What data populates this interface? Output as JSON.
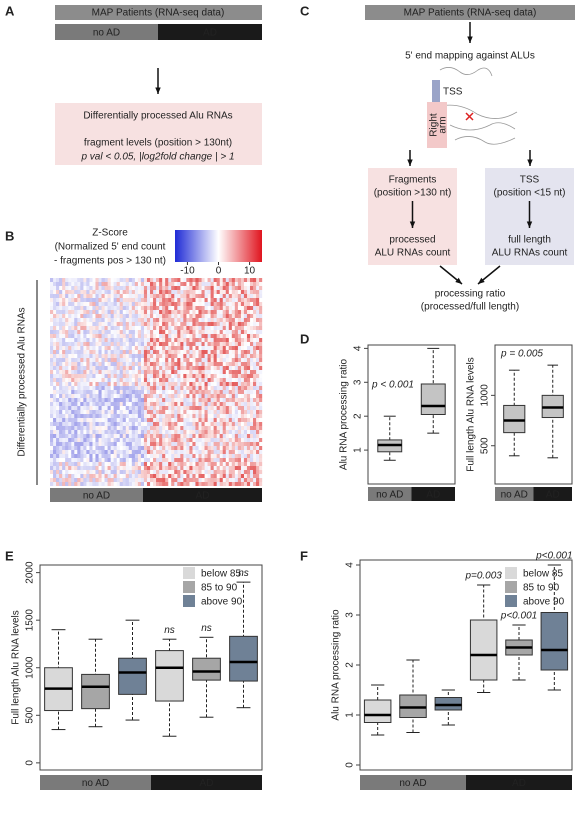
{
  "panel_labels": [
    "A",
    "B",
    "C",
    "D",
    "E",
    "F"
  ],
  "panel_a": {
    "header": "MAP Patients (RNA-seq data)",
    "groups": [
      "no AD",
      "AD"
    ],
    "box_title": "Differentially processed Alu RNAs",
    "box_line": "fragment levels  (position > 130nt)",
    "box_criteria": "p val < 0.05, |log2fold change | > 1"
  },
  "panel_b": {
    "title_lines": [
      "Z-Score",
      "(Normalized  5' end count",
      "- fragments pos > 130 nt)"
    ],
    "colorbar": {
      "lim": [
        -14,
        14
      ],
      "ticks": [
        -10,
        0,
        10
      ]
    },
    "row_label": "Differentially processed Alu RNAs",
    "groups": [
      "no AD",
      "AD"
    ]
  },
  "panel_c": {
    "header": "MAP Patients (RNA-seq data)",
    "step": "5' end mapping against ALUs",
    "tss": "TSS",
    "arm": [
      "Right",
      "arm"
    ],
    "left_box": [
      "Fragments",
      "(position >130 nt)",
      "processed",
      "ALU RNAs count"
    ],
    "right_box": [
      "TSS",
      "(position <15 nt)",
      "full length",
      "ALU RNAs count"
    ],
    "result": [
      "processing ratio",
      "(processed/full length)"
    ]
  },
  "chart_data": [
    {
      "type": "box",
      "ylabel": "Alu RNA processing ratio",
      "categories": [
        "no AD",
        "AD"
      ],
      "color": "#c4c4c4",
      "annotation": "p < 0.001",
      "ylim": [
        0,
        4.1
      ],
      "yticks": [
        1,
        2,
        3,
        4
      ],
      "boxes": [
        {
          "min": 0.7,
          "q1": 0.95,
          "median": 1.15,
          "q3": 1.3,
          "max": 2.0
        },
        {
          "min": 1.5,
          "q1": 2.05,
          "median": 2.3,
          "q3": 2.95,
          "max": 4.0
        }
      ]
    },
    {
      "type": "box",
      "ylabel": "Full length Alu RNA levels",
      "categories": [
        "no AD",
        "AD"
      ],
      "color": "#c4c4c4",
      "annotation": "p = 0.005",
      "ylim": [
        120,
        1500
      ],
      "yticks": [
        500,
        1000
      ],
      "boxes": [
        {
          "min": 400,
          "q1": 630,
          "median": 750,
          "q3": 900,
          "max": 1250
        },
        {
          "min": 380,
          "q1": 780,
          "median": 880,
          "q3": 1000,
          "max": 1300
        }
      ]
    },
    {
      "type": "grouped_box",
      "ylabel": "Full length Alu RNA levels",
      "groups": [
        "no AD",
        "AD"
      ],
      "ylim": [
        -75,
        2080
      ],
      "yticks": [
        0,
        500,
        1000,
        1500,
        2000
      ],
      "series": [
        {
          "name": "below 85",
          "color": "#d9d9d9",
          "boxes": [
            {
              "min": 350,
              "q1": 550,
              "median": 780,
              "q3": 1000,
              "max": 1400
            },
            {
              "min": 280,
              "q1": 650,
              "median": 1000,
              "q3": 1180,
              "max": 1300,
              "label": "ns"
            }
          ]
        },
        {
          "name": "85 to 90",
          "color": "#a6a6a6",
          "boxes": [
            {
              "min": 380,
              "q1": 570,
              "median": 800,
              "q3": 930,
              "max": 1300
            },
            {
              "min": 480,
              "q1": 870,
              "median": 960,
              "q3": 1100,
              "max": 1320,
              "label": "ns"
            }
          ]
        },
        {
          "name": "above 90",
          "color": "#6f8196",
          "boxes": [
            {
              "min": 450,
              "q1": 720,
              "median": 950,
              "q3": 1100,
              "max": 1500
            },
            {
              "min": 580,
              "q1": 860,
              "median": 1060,
              "q3": 1330,
              "max": 1900,
              "label": "ns"
            }
          ]
        }
      ]
    },
    {
      "type": "grouped_box",
      "ylabel": "Alu RNA processing ratio",
      "groups": [
        "no AD",
        "AD"
      ],
      "ylim": [
        -0.1,
        4.1
      ],
      "yticks": [
        0,
        1,
        2,
        3,
        4
      ],
      "series": [
        {
          "name": "below 85",
          "color": "#d9d9d9",
          "boxes": [
            {
              "min": 0.6,
              "q1": 0.85,
              "median": 1.0,
              "q3": 1.3,
              "max": 1.6
            },
            {
              "min": 1.45,
              "q1": 1.7,
              "median": 2.2,
              "q3": 2.9,
              "max": 3.6,
              "label": "p=0.003"
            }
          ]
        },
        {
          "name": "85 to 90",
          "color": "#a6a6a6",
          "boxes": [
            {
              "min": 0.65,
              "q1": 0.95,
              "median": 1.15,
              "q3": 1.4,
              "max": 2.1
            },
            {
              "min": 1.7,
              "q1": 2.2,
              "median": 2.35,
              "q3": 2.5,
              "max": 2.8,
              "label": "p<0.001"
            }
          ]
        },
        {
          "name": "above 90",
          "color": "#6f8196",
          "boxes": [
            {
              "min": 0.8,
              "q1": 1.1,
              "median": 1.2,
              "q3": 1.35,
              "max": 1.5
            },
            {
              "min": 1.5,
              "q1": 1.9,
              "median": 2.3,
              "q3": 3.05,
              "max": 4.0,
              "label": "p<0.001"
            }
          ]
        }
      ]
    }
  ]
}
